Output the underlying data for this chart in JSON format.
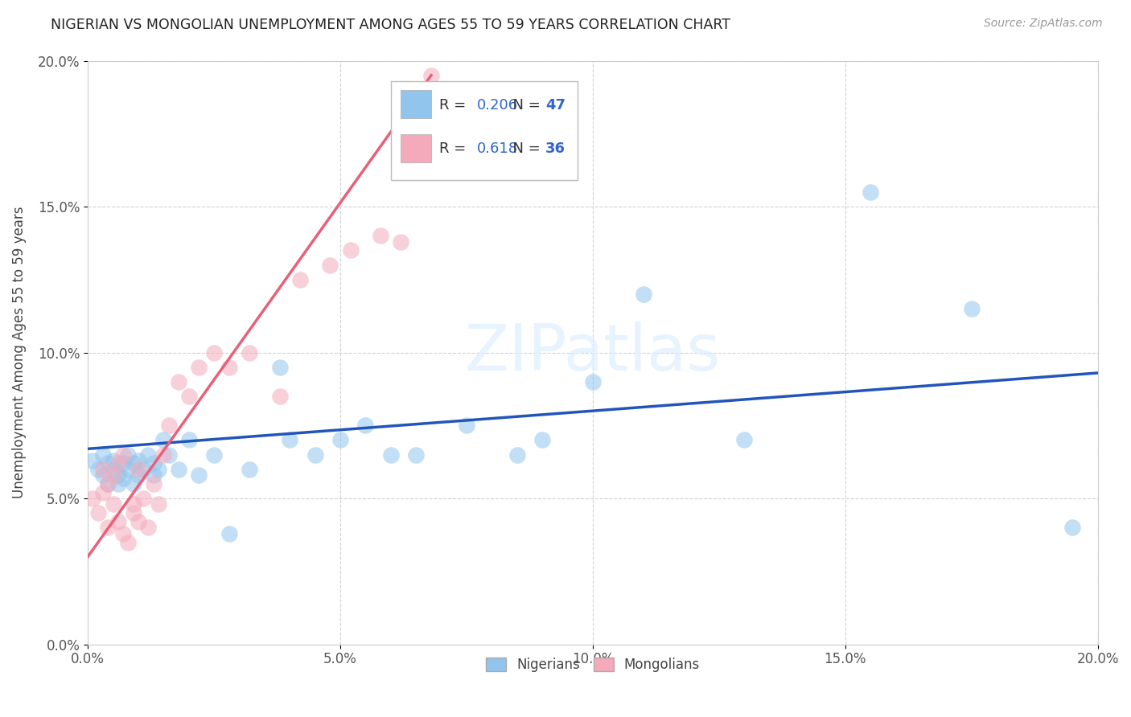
{
  "title": "NIGERIAN VS MONGOLIAN UNEMPLOYMENT AMONG AGES 55 TO 59 YEARS CORRELATION CHART",
  "source": "Source: ZipAtlas.com",
  "ylabel": "Unemployment Among Ages 55 to 59 years",
  "xlim": [
    0,
    0.2
  ],
  "ylim": [
    0,
    0.2
  ],
  "xticks": [
    0.0,
    0.05,
    0.1,
    0.15,
    0.2
  ],
  "yticks": [
    0.0,
    0.05,
    0.1,
    0.15,
    0.2
  ],
  "xticklabels": [
    "0.0%",
    "5.0%",
    "10.0%",
    "15.0%",
    "20.0%"
  ],
  "yticklabels": [
    "0.0%",
    "5.0%",
    "10.0%",
    "15.0%",
    "20.0%"
  ],
  "blue_color": "#92C5ED",
  "pink_color": "#F4AABB",
  "blue_line_color": "#2255BB",
  "pink_line_color": "#E8607A",
  "legend_r_blue": "0.206",
  "legend_n_blue": "47",
  "legend_r_pink": "0.618",
  "legend_n_pink": "36",
  "blue_x": [
    0.001,
    0.002,
    0.003,
    0.003,
    0.004,
    0.004,
    0.005,
    0.005,
    0.006,
    0.006,
    0.007,
    0.007,
    0.008,
    0.008,
    0.009,
    0.009,
    0.01,
    0.01,
    0.011,
    0.012,
    0.013,
    0.013,
    0.014,
    0.015,
    0.016,
    0.018,
    0.02,
    0.022,
    0.025,
    0.028,
    0.032,
    0.038,
    0.04,
    0.045,
    0.05,
    0.055,
    0.06,
    0.065,
    0.075,
    0.085,
    0.09,
    0.1,
    0.11,
    0.13,
    0.155,
    0.175,
    0.195
  ],
  "blue_y": [
    0.063,
    0.06,
    0.065,
    0.058,
    0.062,
    0.055,
    0.06,
    0.063,
    0.058,
    0.055,
    0.062,
    0.057,
    0.06,
    0.065,
    0.055,
    0.062,
    0.058,
    0.063,
    0.06,
    0.065,
    0.062,
    0.058,
    0.06,
    0.07,
    0.065,
    0.06,
    0.07,
    0.058,
    0.065,
    0.038,
    0.06,
    0.095,
    0.07,
    0.065,
    0.07,
    0.075,
    0.065,
    0.065,
    0.075,
    0.065,
    0.07,
    0.09,
    0.12,
    0.07,
    0.155,
    0.115,
    0.04
  ],
  "pink_x": [
    0.001,
    0.002,
    0.003,
    0.003,
    0.004,
    0.004,
    0.005,
    0.005,
    0.006,
    0.006,
    0.007,
    0.007,
    0.008,
    0.009,
    0.009,
    0.01,
    0.01,
    0.011,
    0.012,
    0.013,
    0.014,
    0.015,
    0.016,
    0.018,
    0.02,
    0.022,
    0.025,
    0.028,
    0.032,
    0.038,
    0.042,
    0.048,
    0.052,
    0.058,
    0.062,
    0.068
  ],
  "pink_y": [
    0.05,
    0.045,
    0.06,
    0.052,
    0.055,
    0.04,
    0.058,
    0.048,
    0.042,
    0.062,
    0.038,
    0.065,
    0.035,
    0.048,
    0.045,
    0.042,
    0.06,
    0.05,
    0.04,
    0.055,
    0.048,
    0.065,
    0.075,
    0.09,
    0.085,
    0.095,
    0.1,
    0.095,
    0.1,
    0.085,
    0.125,
    0.13,
    0.135,
    0.14,
    0.138,
    0.195
  ],
  "blue_trend_x0": 0.0,
  "blue_trend_y0": 0.067,
  "blue_trend_x1": 0.2,
  "blue_trend_y1": 0.093,
  "pink_trend_x0": 0.0,
  "pink_trend_y0": 0.03,
  "pink_trend_x1": 0.068,
  "pink_trend_y1": 0.195
}
